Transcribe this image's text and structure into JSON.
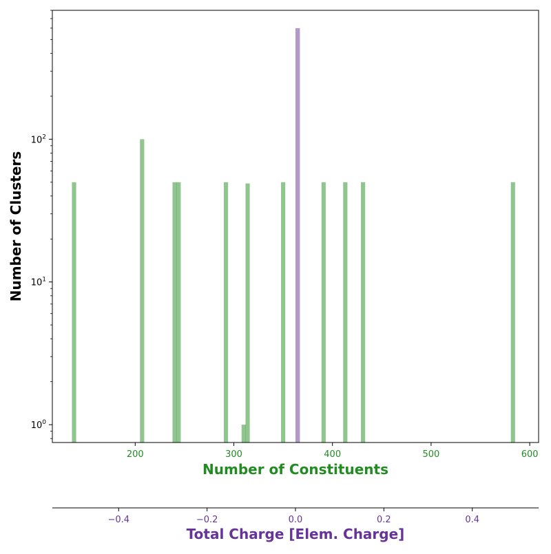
{
  "chart_data": {
    "type": "bar",
    "ylabel": "Number of Clusters",
    "yscale": "log",
    "ylim": [
      0.75,
      800
    ],
    "y_ticks": [
      {
        "value": 1,
        "mantissa": "10",
        "exponent": "0"
      },
      {
        "value": 10,
        "mantissa": "10",
        "exponent": "1"
      },
      {
        "value": 100,
        "mantissa": "10",
        "exponent": "2"
      }
    ],
    "colors": {
      "constituents": "#228b22",
      "charge": "#663399",
      "axis": "#000000"
    },
    "series": [
      {
        "axis": "bottom",
        "xlabel": "Number of Constituents",
        "xlim": [
          116,
          609
        ],
        "x_ticks": [
          "200",
          "300",
          "400",
          "500",
          "600"
        ],
        "x_tick_values": [
          200,
          300,
          400,
          500,
          600
        ],
        "bin_width": 4.3,
        "bars": [
          {
            "x": 138,
            "y": 50
          },
          {
            "x": 207,
            "y": 100
          },
          {
            "x": 240,
            "y": 50
          },
          {
            "x": 244,
            "y": 50
          },
          {
            "x": 292,
            "y": 50
          },
          {
            "x": 310,
            "y": 1
          },
          {
            "x": 314,
            "y": 49
          },
          {
            "x": 350,
            "y": 50
          },
          {
            "x": 391,
            "y": 50
          },
          {
            "x": 413,
            "y": 50
          },
          {
            "x": 431,
            "y": 50
          },
          {
            "x": 583,
            "y": 50
          }
        ]
      },
      {
        "axis": "top-of-second",
        "xlabel": "Total Charge [Elem. Charge]",
        "xlim": [
          -0.55,
          0.55
        ],
        "x_ticks": [
          "−0.4",
          "−0.2",
          "0.0",
          "0.2",
          "0.4"
        ],
        "x_tick_values": [
          -0.4,
          -0.2,
          0.0,
          0.2,
          0.4
        ],
        "bin_width": 0.01,
        "bars": [
          {
            "x": 0.005,
            "y": 600
          }
        ]
      }
    ]
  }
}
